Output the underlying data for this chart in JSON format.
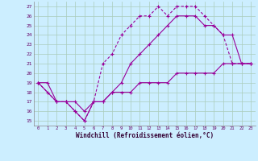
{
  "xlabel": "Windchill (Refroidissement éolien,°C)",
  "bg_color": "#cceeff",
  "grid_color": "#aaccbb",
  "line_color": "#990099",
  "xlim": [
    -0.5,
    23.5
  ],
  "ylim": [
    14.5,
    27.5
  ],
  "yticks": [
    15,
    16,
    17,
    18,
    19,
    20,
    21,
    22,
    23,
    24,
    25,
    26,
    27
  ],
  "xticks": [
    0,
    1,
    2,
    3,
    4,
    5,
    6,
    7,
    8,
    9,
    10,
    11,
    12,
    13,
    14,
    15,
    16,
    17,
    18,
    19,
    20,
    21,
    22,
    23
  ],
  "series1_x": [
    0,
    1,
    2,
    3,
    4,
    5,
    6,
    7,
    8,
    9,
    10,
    11,
    12,
    13,
    14,
    15,
    16,
    17,
    18,
    19,
    20,
    21,
    22,
    23
  ],
  "series1_y": [
    19,
    19,
    17,
    17,
    16,
    15,
    17,
    17,
    18,
    19,
    21,
    22,
    23,
    24,
    25,
    26,
    26,
    26,
    25,
    25,
    24,
    24,
    21,
    21
  ],
  "series2_x": [
    0,
    2,
    3,
    4,
    5,
    6,
    7,
    8,
    9,
    10,
    11,
    12,
    13,
    14,
    15,
    16,
    17,
    18,
    19,
    20,
    21,
    22,
    23
  ],
  "series2_y": [
    19,
    17,
    17,
    16,
    15,
    17,
    21,
    22,
    24,
    25,
    26,
    26,
    27,
    26,
    27,
    27,
    27,
    26,
    25,
    24,
    21,
    21,
    21
  ],
  "series3_x": [
    0,
    1,
    2,
    3,
    4,
    5,
    6,
    7,
    8,
    9,
    10,
    11,
    12,
    13,
    14,
    15,
    16,
    17,
    18,
    19,
    20,
    21,
    22,
    23
  ],
  "series3_y": [
    19,
    18,
    17,
    17,
    17,
    16,
    17,
    17,
    18,
    18,
    18,
    19,
    19,
    19,
    19,
    20,
    20,
    20,
    20,
    20,
    21,
    21,
    21,
    21
  ]
}
